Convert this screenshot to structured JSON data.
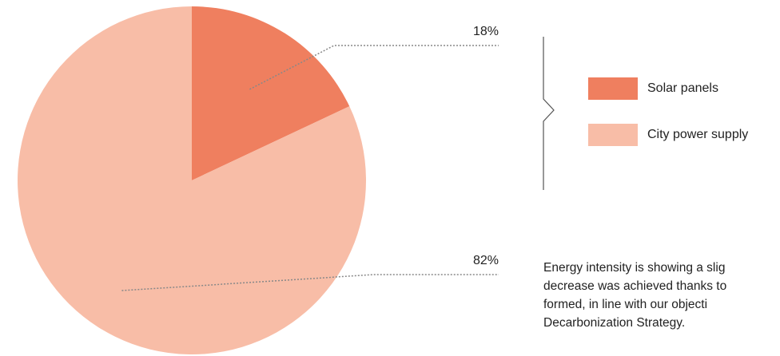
{
  "chart_data": {
    "type": "pie",
    "slices": [
      {
        "label": "Solar panels",
        "value": 18,
        "display": "18%",
        "color": "#ef7f5f"
      },
      {
        "label": "City power supply",
        "value": 82,
        "display": "82%",
        "color": "#f8bda7"
      }
    ]
  },
  "legend": {
    "items": [
      {
        "label": "Solar panels",
        "color": "#ef7f5f"
      },
      {
        "label": "City power supply",
        "color": "#f8bda7"
      }
    ]
  },
  "caption": {
    "lines": [
      "Energy intensity is showing a slig",
      "decrease was achieved thanks to",
      "formed, in line with our objecti",
      "Decarbonization Strategy."
    ]
  },
  "colors": {
    "leader_line": "#888888",
    "bracket": "#555555"
  }
}
